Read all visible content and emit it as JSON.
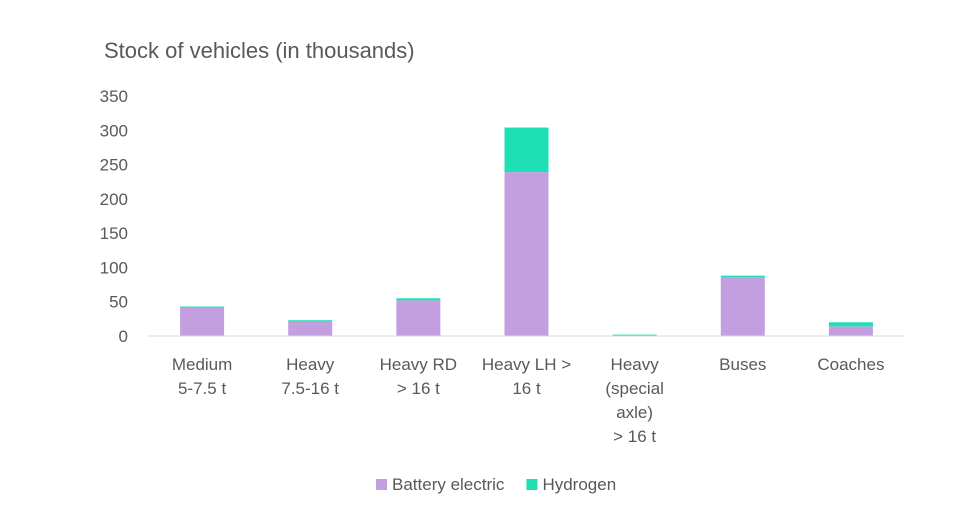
{
  "chart_data": {
    "type": "bar",
    "stacked": true,
    "title": "Stock of vehicles (in thousands)",
    "xlabel": "",
    "ylabel": "",
    "ylim": [
      0,
      350
    ],
    "yticks": [
      0,
      50,
      100,
      150,
      200,
      250,
      300,
      350
    ],
    "grid": false,
    "legend_position": "bottom",
    "categories": [
      [
        "Medium",
        "5-7.5 t"
      ],
      [
        "Heavy",
        "7.5-16 t"
      ],
      [
        "Heavy RD",
        "> 16 t"
      ],
      [
        "Heavy LH >",
        "16 t"
      ],
      [
        "Heavy",
        "(special",
        "axle)",
        "> 16 t"
      ],
      [
        "Buses"
      ],
      [
        "Coaches"
      ]
    ],
    "series": [
      {
        "name": "Battery electric",
        "color": "#c39fe0",
        "values": [
          41,
          21,
          52,
          239,
          0.5,
          86,
          14
        ]
      },
      {
        "name": "Hydrogen",
        "color": "#1ee0b4",
        "values": [
          2,
          2,
          3,
          65,
          1.5,
          2,
          6
        ]
      }
    ]
  }
}
